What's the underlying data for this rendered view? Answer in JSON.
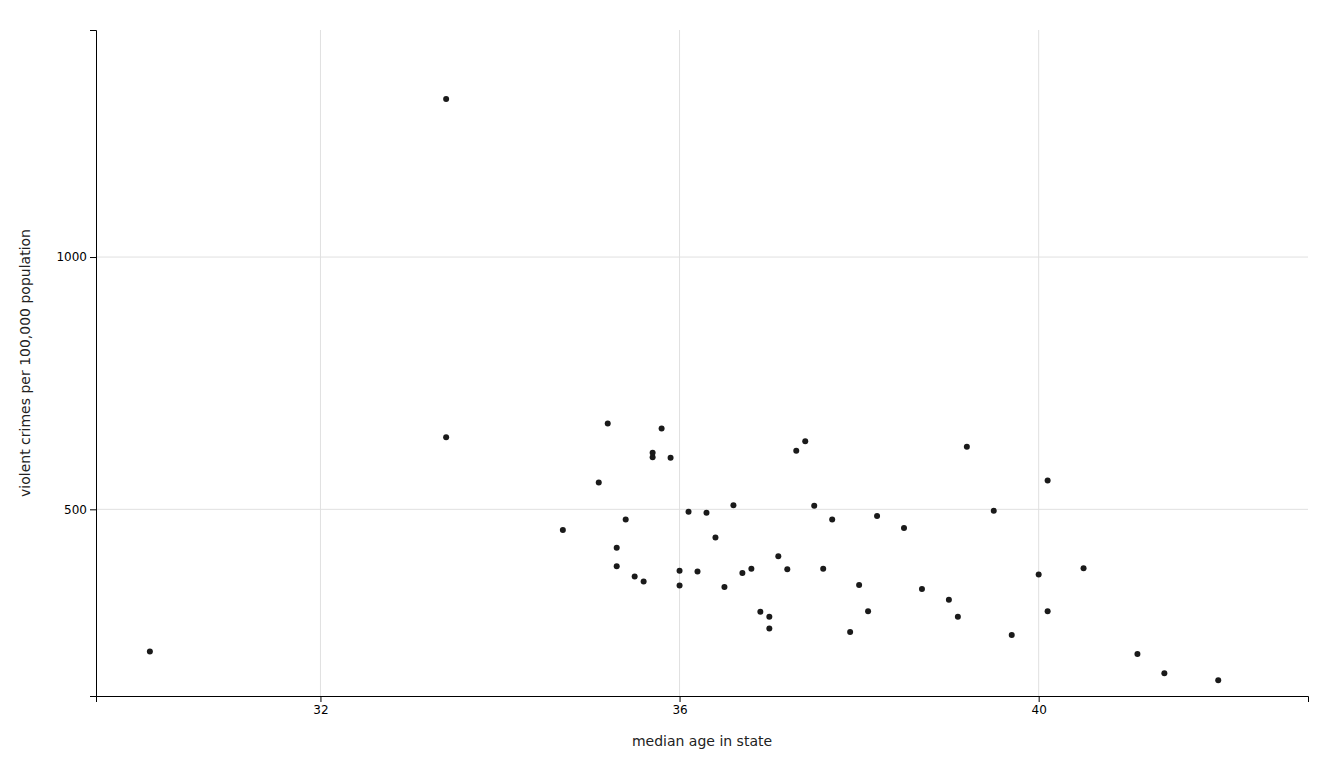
{
  "chart_data": {
    "type": "scatter",
    "xlabel": "median age in state",
    "ylabel": "violent crimes per 100,000 population",
    "x": [
      30.1,
      33.4,
      33.4,
      34.7,
      35.1,
      35.2,
      35.3,
      35.3,
      35.4,
      35.5,
      35.6,
      35.7,
      35.7,
      35.8,
      35.9,
      36.0,
      36.0,
      36.1,
      36.2,
      36.3,
      36.4,
      36.5,
      36.6,
      36.7,
      36.8,
      36.9,
      37.0,
      37.0,
      37.1,
      37.2,
      37.3,
      37.4,
      37.5,
      37.6,
      37.7,
      37.9,
      38.0,
      38.1,
      38.2,
      38.5,
      38.7,
      39.0,
      39.1,
      39.2,
      39.5,
      39.7,
      40.0,
      40.1,
      40.1,
      40.5,
      41.1,
      41.4,
      42.0
    ],
    "values": [
      218,
      1313,
      643,
      459,
      553,
      670,
      387,
      424,
      480,
      367,
      357,
      603,
      612,
      660,
      602,
      378,
      349,
      495,
      377,
      493,
      444,
      346,
      508,
      374,
      382,
      297,
      287,
      264,
      407,
      381,
      616,
      635,
      507,
      382,
      480,
      257,
      350,
      298,
      487,
      463,
      342,
      321,
      287,
      624,
      497,
      251,
      371,
      298,
      557,
      383,
      213,
      175,
      161
    ],
    "xlim": [
      29.5,
      43.0
    ],
    "ylim": [
      130,
      1450
    ],
    "xticks": [
      32,
      36,
      40
    ],
    "yticks": [
      500,
      1000
    ],
    "color": "#1a1a1a",
    "grid": true
  }
}
